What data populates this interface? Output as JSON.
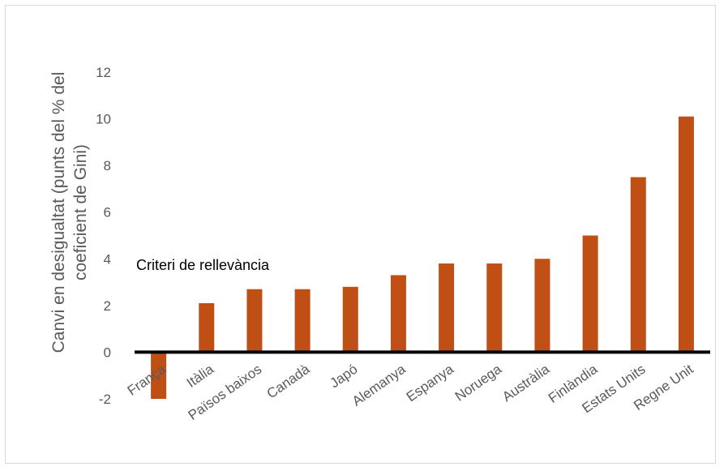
{
  "chart_data": {
    "type": "bar",
    "title": "",
    "xlabel": "",
    "ylabel_lines": [
      "Canvi en desigualtat (punts del % del",
      "coeficient de Gini)"
    ],
    "categories": [
      "França",
      "Itàlia",
      "Països baixos",
      "Canadà",
      "Japó",
      "Alemanya",
      "Espanya",
      "Noruega",
      "Austràlia",
      "Finlàndia",
      "Estats Units",
      "Regne Unit"
    ],
    "values": [
      -2.0,
      2.1,
      2.7,
      2.7,
      2.8,
      3.3,
      3.8,
      3.8,
      4.0,
      5.0,
      7.5,
      10.1
    ],
    "ylim": [
      -2,
      12
    ],
    "yticks": [
      -2,
      0,
      2,
      4,
      6,
      8,
      10,
      12
    ],
    "grid": false,
    "legend": "none",
    "annotation": "Criteri de rellevància",
    "colors": {
      "bar": "#C04F15",
      "axis": "#000000",
      "text": "#595959"
    }
  }
}
